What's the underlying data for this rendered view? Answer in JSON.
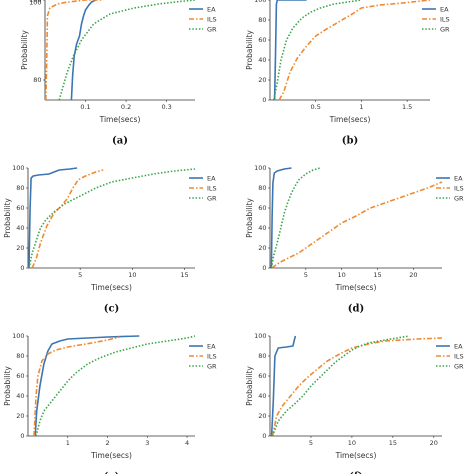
{
  "chart_data": [
    {
      "type": "line",
      "caption": "(a)",
      "xlabel": "Time(secs)",
      "ylabel": "Probability",
      "xlim": [
        0,
        0.37
      ],
      "ylim": [
        75,
        100
      ],
      "xticks": [
        {
          "v": 0.1,
          "l": "0.1"
        },
        {
          "v": 0.2,
          "l": "0.2"
        },
        {
          "v": 0.3,
          "l": "0.3"
        }
      ],
      "yticks": [
        {
          "v": 80,
          "l": "80"
        },
        {
          "v": 100,
          "l": "100"
        }
      ],
      "top_tick": "100",
      "series": [
        {
          "name": "EA",
          "color": "#3b76b3",
          "dash": "",
          "x": [
            0.065,
            0.068,
            0.072,
            0.078,
            0.085,
            0.09,
            0.095,
            0.1,
            0.108,
            0.115,
            0.125
          ],
          "y": [
            75,
            81,
            86,
            89,
            91,
            94,
            96,
            97.5,
            98.7,
            99.5,
            100
          ]
        },
        {
          "name": "ILS",
          "color": "#f08a30",
          "dash": "5,2,1.5,2",
          "x": [
            0.002,
            0.004,
            0.006,
            0.012,
            0.03,
            0.05,
            0.075,
            0.1,
            0.14
          ],
          "y": [
            75,
            83,
            96,
            98,
            99,
            99.4,
            99.7,
            100,
            100
          ]
        },
        {
          "name": "GR",
          "color": "#3aa54a",
          "dash": "1.5,1.8",
          "x": [
            0.035,
            0.045,
            0.055,
            0.07,
            0.09,
            0.12,
            0.16,
            0.22,
            0.28,
            0.33,
            0.37
          ],
          "y": [
            75,
            78.5,
            82,
            86,
            90,
            94,
            96.5,
            98,
            99,
            99.6,
            100
          ]
        }
      ]
    },
    {
      "type": "line",
      "caption": "(b)",
      "xlabel": "Time(secs)",
      "ylabel": "Probability",
      "xlim": [
        0,
        1.75
      ],
      "ylim": [
        0,
        100
      ],
      "xticks": [
        {
          "v": 0.5,
          "l": "0.5"
        },
        {
          "v": 1,
          "l": "1"
        },
        {
          "v": 1.5,
          "l": "1.5"
        }
      ],
      "yticks": [
        {
          "v": 0,
          "l": "0"
        },
        {
          "v": 20,
          "l": "20"
        },
        {
          "v": 40,
          "l": "40"
        },
        {
          "v": 60,
          "l": "60"
        },
        {
          "v": 80,
          "l": "80"
        },
        {
          "v": 100,
          "l": "100"
        }
      ],
      "series": [
        {
          "name": "EA",
          "color": "#3b76b3",
          "dash": "",
          "x": [
            0.05,
            0.06,
            0.07,
            0.08,
            0.1,
            0.4
          ],
          "y": [
            0,
            45,
            96,
            100,
            100,
            100
          ]
        },
        {
          "name": "ILS",
          "color": "#f08a30",
          "dash": "5,2,1.5,2",
          "x": [
            0.1,
            0.15,
            0.22,
            0.3,
            0.4,
            0.5,
            0.6,
            0.75,
            0.9,
            1.0,
            1.2,
            1.45,
            1.75
          ],
          "y": [
            0,
            8,
            28,
            42,
            54,
            64,
            70,
            78,
            86,
            92,
            95,
            97,
            100
          ]
        },
        {
          "name": "GR",
          "color": "#3aa54a",
          "dash": "1.5,1.8",
          "x": [
            0.04,
            0.08,
            0.12,
            0.18,
            0.25,
            0.35,
            0.45,
            0.55,
            0.7,
            0.85,
            1.0
          ],
          "y": [
            0,
            18,
            40,
            60,
            72,
            82,
            88,
            92,
            96,
            98,
            100
          ]
        }
      ]
    },
    {
      "type": "line",
      "caption": "(c)",
      "xlabel": "Time(secs)",
      "ylabel": "Probability",
      "xlim": [
        0,
        16
      ],
      "ylim": [
        0,
        100
      ],
      "xticks": [
        {
          "v": 5,
          "l": "5"
        },
        {
          "v": 10,
          "l": "10"
        },
        {
          "v": 15,
          "l": "15"
        }
      ],
      "yticks": [
        {
          "v": 0,
          "l": "0"
        },
        {
          "v": 20,
          "l": "20"
        },
        {
          "v": 40,
          "l": "40"
        },
        {
          "v": 60,
          "l": "60"
        },
        {
          "v": 80,
          "l": "80"
        },
        {
          "v": 100,
          "l": "100"
        }
      ],
      "series": [
        {
          "name": "EA",
          "color": "#3b76b3",
          "dash": "",
          "x": [
            0.1,
            0.2,
            0.3,
            0.5,
            1.0,
            2.0,
            2.5,
            3.0,
            4.0,
            4.7
          ],
          "y": [
            0,
            60,
            90,
            92,
            93,
            94,
            96,
            98,
            99,
            100
          ]
        },
        {
          "name": "ILS",
          "color": "#f08a30",
          "dash": "5,2,1.5,2",
          "x": [
            0.4,
            0.8,
            1.2,
            1.8,
            2.5,
            3.2,
            3.8,
            4.3,
            4.8,
            5.5,
            6.5,
            7.2
          ],
          "y": [
            0,
            10,
            25,
            42,
            55,
            62,
            70,
            80,
            88,
            92,
            96,
            98
          ]
        },
        {
          "name": "GR",
          "color": "#3aa54a",
          "dash": "1.5,1.8",
          "x": [
            0.1,
            0.4,
            0.8,
            1.2,
            1.7,
            2.5,
            3.5,
            5.0,
            6.5,
            8.0,
            10,
            12,
            14,
            16
          ],
          "y": [
            0,
            15,
            28,
            40,
            48,
            56,
            64,
            72,
            80,
            86,
            90,
            94,
            97,
            99
          ]
        }
      ]
    },
    {
      "type": "line",
      "caption": "(d)",
      "xlabel": "Time(secs)",
      "ylabel": "Probability",
      "xlim": [
        0,
        24
      ],
      "ylim": [
        0,
        100
      ],
      "xticks": [
        {
          "v": 5,
          "l": "5"
        },
        {
          "v": 10,
          "l": "10"
        },
        {
          "v": 15,
          "l": "15"
        },
        {
          "v": 20,
          "l": "20"
        }
      ],
      "yticks": [
        {
          "v": 0,
          "l": "0"
        },
        {
          "v": 20,
          "l": "20"
        },
        {
          "v": 40,
          "l": "40"
        },
        {
          "v": 60,
          "l": "60"
        },
        {
          "v": 80,
          "l": "80"
        },
        {
          "v": 100,
          "l": "100"
        }
      ],
      "series": [
        {
          "name": "EA",
          "color": "#3b76b3",
          "dash": "",
          "x": [
            0.2,
            0.3,
            0.4,
            0.6,
            1.0,
            2.0,
            3.0
          ],
          "y": [
            0,
            50,
            85,
            95,
            97,
            99,
            100
          ]
        },
        {
          "name": "ILS",
          "color": "#f08a30",
          "dash": "5,2,1.5,2",
          "x": [
            0.3,
            1.0,
            2.0,
            4.0,
            6.0,
            8.0,
            10.0,
            12.0,
            14.0,
            16.0,
            18.0,
            20.0,
            22.0,
            24.0
          ],
          "y": [
            0,
            4,
            8,
            15,
            25,
            35,
            45,
            52,
            60,
            65,
            70,
            75,
            80,
            86
          ]
        },
        {
          "name": "GR",
          "color": "#3aa54a",
          "dash": "1.5,1.8",
          "x": [
            0.2,
            0.5,
            1.0,
            1.5,
            2.0,
            2.5,
            3.0,
            3.5,
            4.0,
            5.0,
            6.0,
            7.0
          ],
          "y": [
            0,
            12,
            25,
            40,
            55,
            66,
            75,
            82,
            88,
            94,
            98,
            100
          ]
        }
      ]
    },
    {
      "type": "line",
      "caption": "(e)",
      "xlabel": "Time(secs)",
      "ylabel": "Probability",
      "xlim": [
        0,
        4.2
      ],
      "ylim": [
        0,
        100
      ],
      "xticks": [
        {
          "v": 1,
          "l": "1"
        },
        {
          "v": 2,
          "l": "2"
        },
        {
          "v": 3,
          "l": "3"
        },
        {
          "v": 4,
          "l": "4"
        }
      ],
      "yticks": [
        {
          "v": 0,
          "l": "0"
        },
        {
          "v": 20,
          "l": "20"
        },
        {
          "v": 40,
          "l": "40"
        },
        {
          "v": 60,
          "l": "60"
        },
        {
          "v": 80,
          "l": "80"
        },
        {
          "v": 100,
          "l": "100"
        }
      ],
      "series": [
        {
          "name": "EA",
          "color": "#3b76b3",
          "dash": "",
          "x": [
            0.18,
            0.22,
            0.3,
            0.4,
            0.5,
            0.6,
            0.8,
            1.0,
            1.5,
            2.0,
            2.8
          ],
          "y": [
            0,
            25,
            50,
            72,
            85,
            92,
            95,
            97,
            98,
            99,
            100
          ]
        },
        {
          "name": "ILS",
          "color": "#f08a30",
          "dash": "5,2,1.5,2",
          "x": [
            0.15,
            0.2,
            0.25,
            0.35,
            0.5,
            0.7,
            1.0,
            1.3,
            1.6,
            2.0,
            2.3
          ],
          "y": [
            0,
            40,
            60,
            75,
            82,
            86,
            89,
            91,
            93,
            96,
            99
          ]
        },
        {
          "name": "GR",
          "color": "#3aa54a",
          "dash": "1.5,1.8",
          "x": [
            0.2,
            0.3,
            0.4,
            0.6,
            0.8,
            1.0,
            1.2,
            1.5,
            1.8,
            2.2,
            2.6,
            3.0,
            3.5,
            4.0,
            4.2
          ],
          "y": [
            0,
            15,
            25,
            35,
            45,
            55,
            63,
            72,
            78,
            84,
            88,
            92,
            95,
            98,
            100
          ]
        }
      ]
    },
    {
      "type": "line",
      "caption": "(f)",
      "xlabel": "Time(secs)",
      "ylabel": "Probability",
      "xlim": [
        0,
        21
      ],
      "ylim": [
        0,
        100
      ],
      "xticks": [
        {
          "v": 5,
          "l": "5"
        },
        {
          "v": 10,
          "l": "10"
        },
        {
          "v": 15,
          "l": "15"
        },
        {
          "v": 20,
          "l": "20"
        }
      ],
      "yticks": [
        {
          "v": 0,
          "l": "0"
        },
        {
          "v": 20,
          "l": "20"
        },
        {
          "v": 40,
          "l": "40"
        },
        {
          "v": 60,
          "l": "60"
        },
        {
          "v": 80,
          "l": "80"
        },
        {
          "v": 100,
          "l": "100"
        }
      ],
      "series": [
        {
          "name": "EA",
          "color": "#3b76b3",
          "dash": "",
          "x": [
            0.2,
            0.4,
            0.6,
            1.0,
            2.0,
            2.8,
            3.0,
            3.1
          ],
          "y": [
            0,
            35,
            80,
            88,
            89,
            90,
            97,
            100
          ]
        },
        {
          "name": "ILS",
          "color": "#f08a30",
          "dash": "5,2,1.5,2",
          "x": [
            0.3,
            0.8,
            1.5,
            2.5,
            3.5,
            4.5,
            5.5,
            7.0,
            8.5,
            10,
            12,
            14,
            16,
            18,
            21
          ],
          "y": [
            0,
            20,
            30,
            40,
            50,
            58,
            65,
            75,
            82,
            88,
            92,
            95,
            96,
            97,
            98
          ]
        },
        {
          "name": "GR",
          "color": "#3aa54a",
          "dash": "1.5,1.8",
          "x": [
            0.3,
            1.0,
            2.0,
            3.0,
            4.0,
            5.0,
            6.0,
            7.0,
            8.0,
            9.0,
            10.0,
            11.0,
            12.0,
            14.0,
            17.0
          ],
          "y": [
            0,
            15,
            25,
            32,
            40,
            50,
            58,
            66,
            74,
            80,
            86,
            90,
            93,
            96,
            100
          ]
        }
      ]
    }
  ]
}
